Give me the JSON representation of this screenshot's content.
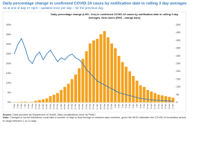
{
  "header": {
    "title": "Daily percentage change in confirmed COVID-19 cases by notification date in rolling 3 day averages",
    "subtitle": "As at end of day 17 April – updated once per day – for the previous day."
  },
  "chart_data": {
    "type": "bar-line",
    "title": "Daily percentage change (LHS - line) in confirmed COVID-19 cases by notification date in rolling 3 day averages. New cases (RHS - orange bars)",
    "categories": [
      "4-Mar",
      "5-Mar",
      "6-Mar",
      "7-Mar",
      "8-Mar",
      "9-Mar",
      "10-Mar",
      "11-Mar",
      "12-Mar",
      "13-Mar",
      "14-Mar",
      "15-Mar",
      "16-Mar",
      "17-Mar",
      "18-Mar",
      "19-Mar",
      "20-Mar",
      "21-Mar",
      "22-Mar",
      "23-Mar",
      "24-Mar",
      "25-Mar",
      "26-Mar",
      "27-Mar",
      "28-Mar",
      "29-Mar",
      "30-Mar",
      "31-Mar",
      "1-Apr",
      "2-Apr",
      "3-Apr",
      "4-Apr",
      "5-Apr",
      "6-Apr",
      "7-Apr",
      "8-Apr",
      "9-Apr",
      "10-Apr",
      "11-Apr",
      "12-Apr",
      "13-Apr",
      "14-Apr",
      "15-Apr",
      "16-Apr",
      "17-Apr"
    ],
    "series": [
      {
        "type": "bar",
        "axis": "y2",
        "color": "#f4a11d",
        "values": [
          1,
          2,
          3,
          4,
          2,
          3,
          10,
          15,
          20,
          25,
          40,
          50,
          60,
          80,
          100,
          120,
          150,
          180,
          220,
          280,
          330,
          380,
          400,
          410,
          440,
          460,
          420,
          380,
          350,
          300,
          260,
          230,
          200,
          170,
          140,
          110,
          100,
          80,
          70,
          60,
          50,
          45,
          40,
          35,
          30
        ]
      },
      {
        "type": "line",
        "color": "#2e75b6",
        "values": [
          25,
          30,
          33,
          28,
          22,
          20,
          24,
          26,
          22,
          25,
          27,
          24,
          21,
          23,
          22,
          24,
          25,
          23,
          22,
          20,
          17,
          15,
          13,
          11,
          10,
          9,
          8,
          7,
          6,
          5,
          4.5,
          4,
          3.5,
          3,
          2.5,
          2,
          1.8,
          1.5,
          1.3,
          1.1,
          1,
          0.9,
          0.8,
          0.7,
          0.6
        ]
      }
    ],
    "ylim": [
      0,
      40
    ],
    "yticks": [
      {
        "value": 0,
        "label": "0%"
      },
      {
        "value": 5,
        "label": "5%"
      },
      {
        "value": 10,
        "label": "10%"
      },
      {
        "value": 15,
        "label": "15%"
      },
      {
        "value": 20,
        "label": "20%"
      },
      {
        "value": 25,
        "label": "25%"
      },
      {
        "value": 30,
        "label": "30%"
      },
      {
        "value": 35,
        "label": "35%"
      },
      {
        "value": 40,
        "label": "40%"
      }
    ],
    "y2lim": [
      0,
      500
    ],
    "y2ticks": [
      0,
      50,
      100,
      150,
      200,
      250,
      300,
      350,
      400,
      450,
      500
    ]
  },
  "footer": {
    "source_label": "Source:",
    "source": "Data provided by Department of Health, Data visualisations done by PM&C",
    "note_label": "Note:",
    "note": "Changes in social restrictions could take a number of days to flow through to reduced case numbers, given the WHO estimates the COVID-19 incubation period to range between 1 to 14 days."
  }
}
